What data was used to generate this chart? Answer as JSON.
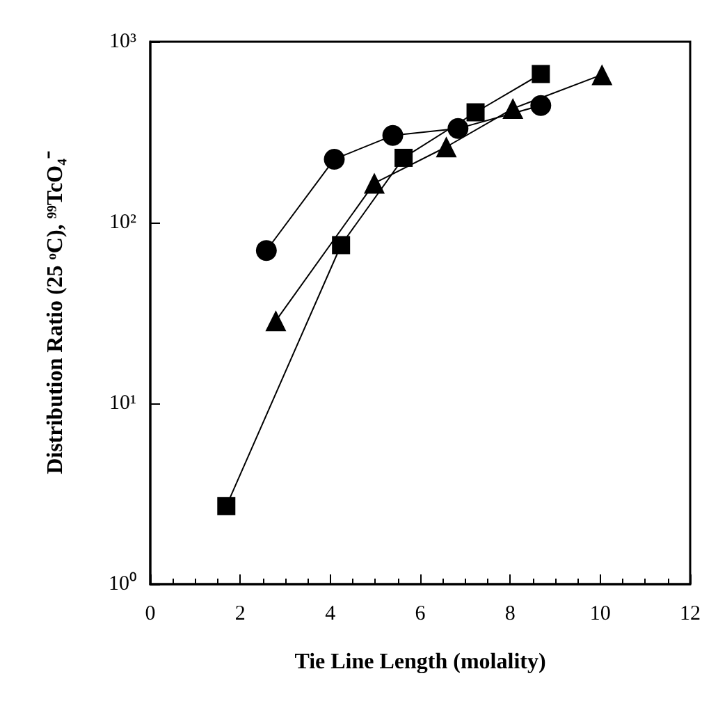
{
  "chart_data": {
    "type": "line",
    "xlabel": "Tie Line Length (molality)",
    "ylabel": "Distribution Ratio (25 ᵒC), ⁹⁹TcO₄⁻",
    "log": "y",
    "grid": false,
    "line_style": "solid",
    "xlim": [
      0,
      12
    ],
    "xticks": [
      0,
      2,
      4,
      6,
      8,
      10,
      12
    ],
    "ylim": [
      1,
      1000
    ],
    "yticks": [
      {
        "value": 1,
        "label": "10⁰"
      },
      {
        "value": 10,
        "label": "10¹"
      },
      {
        "value": 100,
        "label": "10²"
      },
      {
        "value": 1000,
        "label": "10³"
      }
    ],
    "series": [
      {
        "color": "#000000",
        "marker": "circle",
        "x": [
          2.58,
          4.09,
          5.39,
          6.84,
          8.68
        ],
        "values": [
          70,
          224,
          303,
          331,
          444
        ]
      },
      {
        "color": "#000000",
        "marker": "square",
        "x": [
          1.69,
          4.24,
          5.63,
          7.23,
          8.68
        ],
        "values": [
          2.7,
          75,
          228,
          407,
          663
        ]
      },
      {
        "color": "#000000",
        "marker": "triangle",
        "x": [
          2.79,
          4.98,
          6.58,
          8.06,
          10.04
        ],
        "values": [
          28.6,
          165,
          262,
          427,
          657
        ]
      }
    ]
  }
}
